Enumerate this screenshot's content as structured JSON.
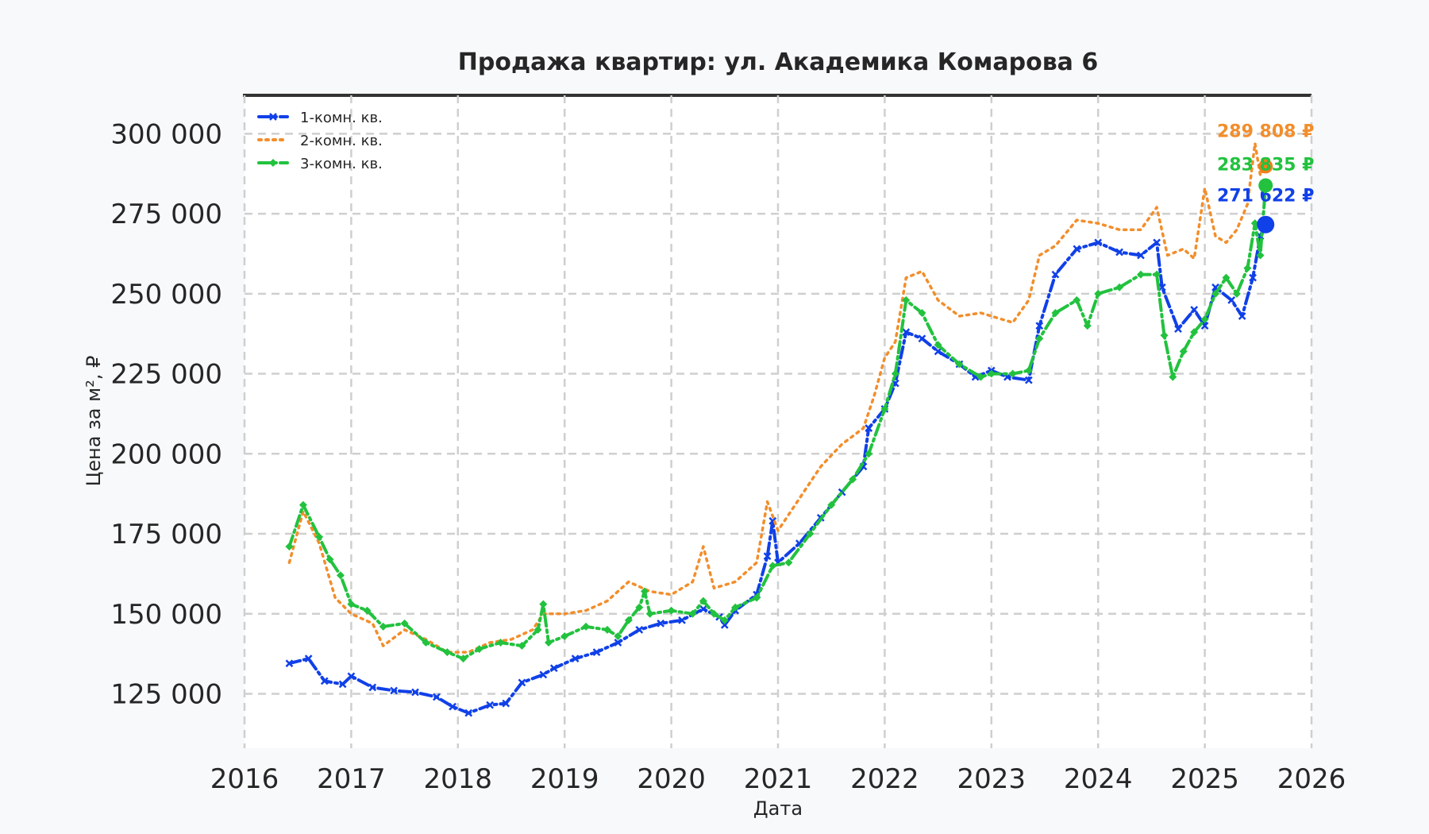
{
  "chart_data": {
    "type": "line",
    "title": "Продажа квартир: ул. Академика Комарова 6",
    "xlabel": "Дата",
    "ylabel": "Цена за м², ₽",
    "xlim": [
      2016,
      2026
    ],
    "ylim": [
      108000,
      312000
    ],
    "x_ticks": [
      "2016",
      "2017",
      "2018",
      "2019",
      "2020",
      "2021",
      "2022",
      "2023",
      "2024",
      "2025",
      "2026"
    ],
    "y_ticks": [
      {
        "value": 125000,
        "label": "125 000"
      },
      {
        "value": 150000,
        "label": "150 000"
      },
      {
        "value": 175000,
        "label": "175 000"
      },
      {
        "value": 200000,
        "label": "200 000"
      },
      {
        "value": 225000,
        "label": "225 000"
      },
      {
        "value": 250000,
        "label": "250 000"
      },
      {
        "value": 275000,
        "label": "275 000"
      },
      {
        "value": 300000,
        "label": "300 000"
      }
    ],
    "grid": true,
    "legend_position": "top-left",
    "series": [
      {
        "name": "1-комн. кв.",
        "color": "#1040e8",
        "style": "dashdot-x",
        "last_value": 271622,
        "last_label": "271 622 ₽",
        "points": [
          [
            2016.42,
            134500
          ],
          [
            2016.6,
            136000
          ],
          [
            2016.75,
            129000
          ],
          [
            2016.92,
            128000
          ],
          [
            2017.0,
            130500
          ],
          [
            2017.2,
            127000
          ],
          [
            2017.4,
            126000
          ],
          [
            2017.6,
            125500
          ],
          [
            2017.8,
            124000
          ],
          [
            2017.95,
            121000
          ],
          [
            2018.1,
            119000
          ],
          [
            2018.3,
            121500
          ],
          [
            2018.45,
            122000
          ],
          [
            2018.6,
            128500
          ],
          [
            2018.8,
            131000
          ],
          [
            2018.9,
            133000
          ],
          [
            2019.1,
            136000
          ],
          [
            2019.3,
            138000
          ],
          [
            2019.5,
            141000
          ],
          [
            2019.7,
            145000
          ],
          [
            2019.9,
            147000
          ],
          [
            2020.1,
            148000
          ],
          [
            2020.3,
            151500
          ],
          [
            2020.45,
            149000
          ],
          [
            2020.5,
            146500
          ],
          [
            2020.6,
            151000
          ],
          [
            2020.8,
            156000
          ],
          [
            2020.9,
            168000
          ],
          [
            2020.95,
            179000
          ],
          [
            2021.0,
            166000
          ],
          [
            2021.2,
            172000
          ],
          [
            2021.4,
            180000
          ],
          [
            2021.6,
            188000
          ],
          [
            2021.8,
            196000
          ],
          [
            2021.85,
            208000
          ],
          [
            2022.0,
            214000
          ],
          [
            2022.1,
            222000
          ],
          [
            2022.2,
            238000
          ],
          [
            2022.35,
            236000
          ],
          [
            2022.5,
            232000
          ],
          [
            2022.7,
            228000
          ],
          [
            2022.85,
            224000
          ],
          [
            2023.0,
            226000
          ],
          [
            2023.15,
            224000
          ],
          [
            2023.35,
            223000
          ],
          [
            2023.45,
            240000
          ],
          [
            2023.6,
            256000
          ],
          [
            2023.8,
            264000
          ],
          [
            2024.0,
            266000
          ],
          [
            2024.2,
            263000
          ],
          [
            2024.4,
            262000
          ],
          [
            2024.55,
            266000
          ],
          [
            2024.6,
            252000
          ],
          [
            2024.75,
            239000
          ],
          [
            2024.9,
            245000
          ],
          [
            2025.0,
            240000
          ],
          [
            2025.1,
            252000
          ],
          [
            2025.25,
            248000
          ],
          [
            2025.35,
            243000
          ],
          [
            2025.45,
            255000
          ],
          [
            2025.52,
            268000
          ],
          [
            2025.57,
            271622
          ]
        ]
      },
      {
        "name": "2-комн. кв.",
        "color": "#f28e2b",
        "style": "dotted",
        "last_value": 289808,
        "last_label": "289 808 ₽",
        "points": [
          [
            2016.42,
            166000
          ],
          [
            2016.55,
            182000
          ],
          [
            2016.7,
            172000
          ],
          [
            2016.85,
            155000
          ],
          [
            2017.0,
            150000
          ],
          [
            2017.2,
            147000
          ],
          [
            2017.3,
            140000
          ],
          [
            2017.5,
            145000
          ],
          [
            2017.7,
            142000
          ],
          [
            2017.9,
            138000
          ],
          [
            2018.1,
            138000
          ],
          [
            2018.3,
            141000
          ],
          [
            2018.5,
            142000
          ],
          [
            2018.7,
            145000
          ],
          [
            2018.8,
            150000
          ],
          [
            2019.0,
            150000
          ],
          [
            2019.2,
            151000
          ],
          [
            2019.4,
            154000
          ],
          [
            2019.6,
            160000
          ],
          [
            2019.8,
            157000
          ],
          [
            2020.0,
            156000
          ],
          [
            2020.2,
            160000
          ],
          [
            2020.3,
            171000
          ],
          [
            2020.4,
            158000
          ],
          [
            2020.6,
            160000
          ],
          [
            2020.8,
            166000
          ],
          [
            2020.9,
            185000
          ],
          [
            2021.0,
            176000
          ],
          [
            2021.2,
            186000
          ],
          [
            2021.4,
            196000
          ],
          [
            2021.6,
            203000
          ],
          [
            2021.8,
            208000
          ],
          [
            2021.9,
            218000
          ],
          [
            2022.0,
            230000
          ],
          [
            2022.1,
            235000
          ],
          [
            2022.2,
            255000
          ],
          [
            2022.35,
            257000
          ],
          [
            2022.5,
            248000
          ],
          [
            2022.7,
            243000
          ],
          [
            2022.9,
            244000
          ],
          [
            2023.0,
            243000
          ],
          [
            2023.2,
            241000
          ],
          [
            2023.35,
            248000
          ],
          [
            2023.45,
            262000
          ],
          [
            2023.6,
            265000
          ],
          [
            2023.8,
            273000
          ],
          [
            2024.0,
            272000
          ],
          [
            2024.2,
            270000
          ],
          [
            2024.4,
            270000
          ],
          [
            2024.55,
            277000
          ],
          [
            2024.65,
            262000
          ],
          [
            2024.8,
            264000
          ],
          [
            2024.9,
            261000
          ],
          [
            2025.0,
            283000
          ],
          [
            2025.1,
            268000
          ],
          [
            2025.2,
            266000
          ],
          [
            2025.3,
            270000
          ],
          [
            2025.4,
            278000
          ],
          [
            2025.47,
            297000
          ],
          [
            2025.52,
            287000
          ],
          [
            2025.57,
            289808
          ]
        ]
      },
      {
        "name": "3-комн. кв.",
        "color": "#22c23e",
        "style": "dashdot-diamond",
        "last_value": 283835,
        "last_label": "283 835 ₽",
        "points": [
          [
            2016.42,
            171000
          ],
          [
            2016.55,
            184000
          ],
          [
            2016.7,
            174000
          ],
          [
            2016.8,
            167000
          ],
          [
            2016.9,
            162000
          ],
          [
            2017.0,
            153000
          ],
          [
            2017.15,
            151000
          ],
          [
            2017.3,
            146000
          ],
          [
            2017.5,
            147000
          ],
          [
            2017.7,
            141000
          ],
          [
            2017.9,
            138000
          ],
          [
            2018.05,
            136000
          ],
          [
            2018.2,
            139000
          ],
          [
            2018.4,
            141000
          ],
          [
            2018.6,
            140000
          ],
          [
            2018.75,
            145000
          ],
          [
            2018.8,
            153000
          ],
          [
            2018.85,
            141000
          ],
          [
            2019.0,
            143000
          ],
          [
            2019.2,
            146000
          ],
          [
            2019.4,
            145000
          ],
          [
            2019.5,
            143000
          ],
          [
            2019.6,
            148000
          ],
          [
            2019.7,
            152000
          ],
          [
            2019.75,
            157000
          ],
          [
            2019.8,
            150000
          ],
          [
            2020.0,
            151000
          ],
          [
            2020.2,
            150000
          ],
          [
            2020.3,
            154000
          ],
          [
            2020.4,
            150000
          ],
          [
            2020.5,
            148000
          ],
          [
            2020.6,
            152000
          ],
          [
            2020.8,
            155000
          ],
          [
            2020.95,
            165000
          ],
          [
            2021.1,
            166000
          ],
          [
            2021.3,
            175000
          ],
          [
            2021.5,
            184000
          ],
          [
            2021.7,
            192000
          ],
          [
            2021.85,
            200000
          ],
          [
            2022.0,
            214000
          ],
          [
            2022.1,
            225000
          ],
          [
            2022.2,
            248000
          ],
          [
            2022.35,
            244000
          ],
          [
            2022.5,
            234000
          ],
          [
            2022.7,
            228000
          ],
          [
            2022.9,
            224000
          ],
          [
            2023.0,
            225000
          ],
          [
            2023.2,
            225000
          ],
          [
            2023.35,
            226000
          ],
          [
            2023.45,
            236000
          ],
          [
            2023.6,
            244000
          ],
          [
            2023.8,
            248000
          ],
          [
            2023.9,
            240000
          ],
          [
            2024.0,
            250000
          ],
          [
            2024.2,
            252000
          ],
          [
            2024.4,
            256000
          ],
          [
            2024.55,
            256000
          ],
          [
            2024.62,
            237000
          ],
          [
            2024.7,
            224000
          ],
          [
            2024.8,
            232000
          ],
          [
            2024.9,
            238000
          ],
          [
            2025.0,
            242000
          ],
          [
            2025.1,
            250000
          ],
          [
            2025.2,
            255000
          ],
          [
            2025.3,
            250000
          ],
          [
            2025.4,
            258000
          ],
          [
            2025.47,
            272000
          ],
          [
            2025.52,
            262000
          ],
          [
            2025.57,
            283835
          ]
        ]
      }
    ]
  }
}
